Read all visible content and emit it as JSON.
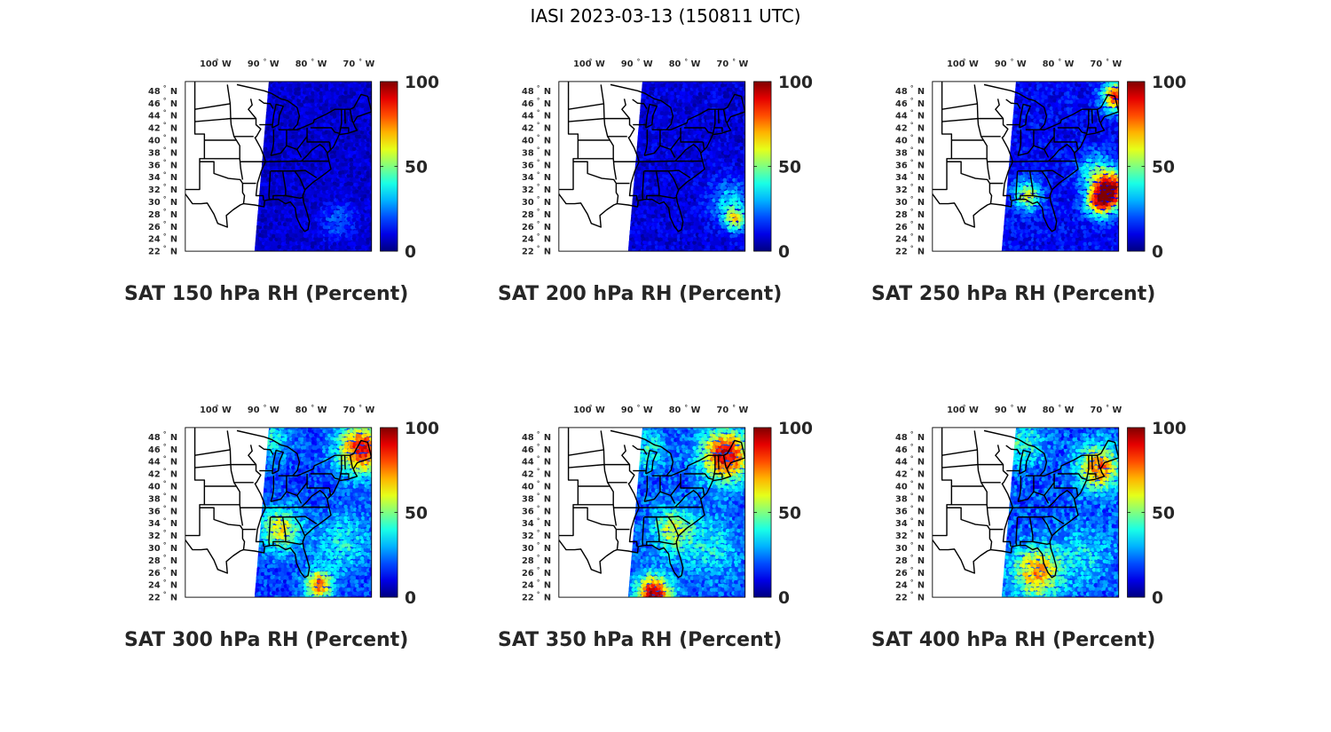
{
  "figure": {
    "title": "IASI 2023-03-13 (150811 UTC)"
  },
  "axes": {
    "lon_ticks": [
      {
        "lon": -100,
        "label": "100",
        "hemi": "W"
      },
      {
        "lon": -90,
        "label": "90",
        "hemi": "W"
      },
      {
        "lon": -80,
        "label": "80",
        "hemi": "W"
      },
      {
        "lon": -70,
        "label": "70",
        "hemi": "W"
      }
    ],
    "lat_ticks": [
      {
        "lat": 48,
        "label": "48",
        "hemi": "N"
      },
      {
        "lat": 46,
        "label": "46",
        "hemi": "N"
      },
      {
        "lat": 44,
        "label": "44",
        "hemi": "N"
      },
      {
        "lat": 42,
        "label": "42",
        "hemi": "N"
      },
      {
        "lat": 40,
        "label": "40",
        "hemi": "N"
      },
      {
        "lat": 38,
        "label": "38",
        "hemi": "N"
      },
      {
        "lat": 36,
        "label": "36",
        "hemi": "N"
      },
      {
        "lat": 34,
        "label": "34",
        "hemi": "N"
      },
      {
        "lat": 32,
        "label": "32",
        "hemi": "N"
      },
      {
        "lat": 30,
        "label": "30",
        "hemi": "N"
      },
      {
        "lat": 28,
        "label": "28",
        "hemi": "N"
      },
      {
        "lat": 26,
        "label": "26",
        "hemi": "N"
      },
      {
        "lat": 24,
        "label": "24",
        "hemi": "N"
      },
      {
        "lat": 22,
        "label": "22",
        "hemi": "N"
      }
    ],
    "degree_symbol": "°",
    "lon_range": [
      -106,
      -67
    ],
    "lat_range": [
      22,
      49.5
    ]
  },
  "colorbar": {
    "ticks": [
      {
        "value": 100,
        "label": "100"
      },
      {
        "value": 50,
        "label": "50"
      },
      {
        "value": 0,
        "label": "0"
      }
    ],
    "range": [
      0,
      100
    ],
    "colormap": "jet"
  },
  "panels": [
    {
      "title": "SAT 150 hPa RH (Percent)",
      "level": 150,
      "base_rh": 8,
      "features": [
        {
          "lon": -74,
          "lat": 27,
          "rh": 22,
          "r": 2.5
        }
      ]
    },
    {
      "title": "SAT 200 hPa RH (Percent)",
      "level": 200,
      "base_rh": 9,
      "features": [
        {
          "lon": -70,
          "lat": 30,
          "rh": 35,
          "r": 3
        },
        {
          "lon": -69,
          "lat": 27,
          "rh": 55,
          "r": 1.5
        }
      ]
    },
    {
      "title": "SAT 250 hPa RH (Percent)",
      "level": 250,
      "base_rh": 12,
      "features": [
        {
          "lon": -68.5,
          "lat": 32,
          "rh": 92,
          "r": 2.5
        },
        {
          "lon": -71,
          "lat": 30,
          "rh": 70,
          "r": 2
        },
        {
          "lon": -86,
          "lat": 31,
          "rh": 60,
          "r": 2
        },
        {
          "lon": -67.5,
          "lat": 47,
          "rh": 85,
          "r": 2
        },
        {
          "lon": -72,
          "lat": 35,
          "rh": 40,
          "r": 2.5
        }
      ]
    },
    {
      "title": "SAT 300 hPa RH (Percent)",
      "level": 300,
      "base_rh": 18,
      "features": [
        {
          "lon": -69,
          "lat": 46,
          "rh": 88,
          "r": 3.5
        },
        {
          "lon": -86,
          "lat": 33,
          "rh": 62,
          "r": 3
        },
        {
          "lon": -78,
          "lat": 24,
          "rh": 78,
          "r": 2
        },
        {
          "lon": -73,
          "lat": 31,
          "rh": 40,
          "r": 4
        },
        {
          "lon": -88,
          "lat": 47.5,
          "rh": 40,
          "r": 3
        }
      ]
    },
    {
      "title": "SAT 350 hPa RH (Percent)",
      "level": 350,
      "base_rh": 20,
      "features": [
        {
          "lon": -71,
          "lat": 45,
          "rh": 92,
          "r": 3.5
        },
        {
          "lon": -86,
          "lat": 22.5,
          "rh": 98,
          "r": 2.5
        },
        {
          "lon": -82,
          "lat": 33,
          "rh": 58,
          "r": 3
        },
        {
          "lon": -74,
          "lat": 30,
          "rh": 38,
          "r": 4
        },
        {
          "lon": -88,
          "lat": 46,
          "rh": 42,
          "r": 3
        }
      ]
    },
    {
      "title": "SAT 400 hPa RH (Percent)",
      "level": 400,
      "base_rh": 20,
      "features": [
        {
          "lon": -71,
          "lat": 43,
          "rh": 78,
          "r": 3
        },
        {
          "lon": -84,
          "lat": 26,
          "rh": 72,
          "r": 3.5
        },
        {
          "lon": -87,
          "lat": 47,
          "rh": 45,
          "r": 3
        },
        {
          "lon": -74,
          "lat": 29,
          "rh": 35,
          "r": 4
        }
      ]
    }
  ]
}
